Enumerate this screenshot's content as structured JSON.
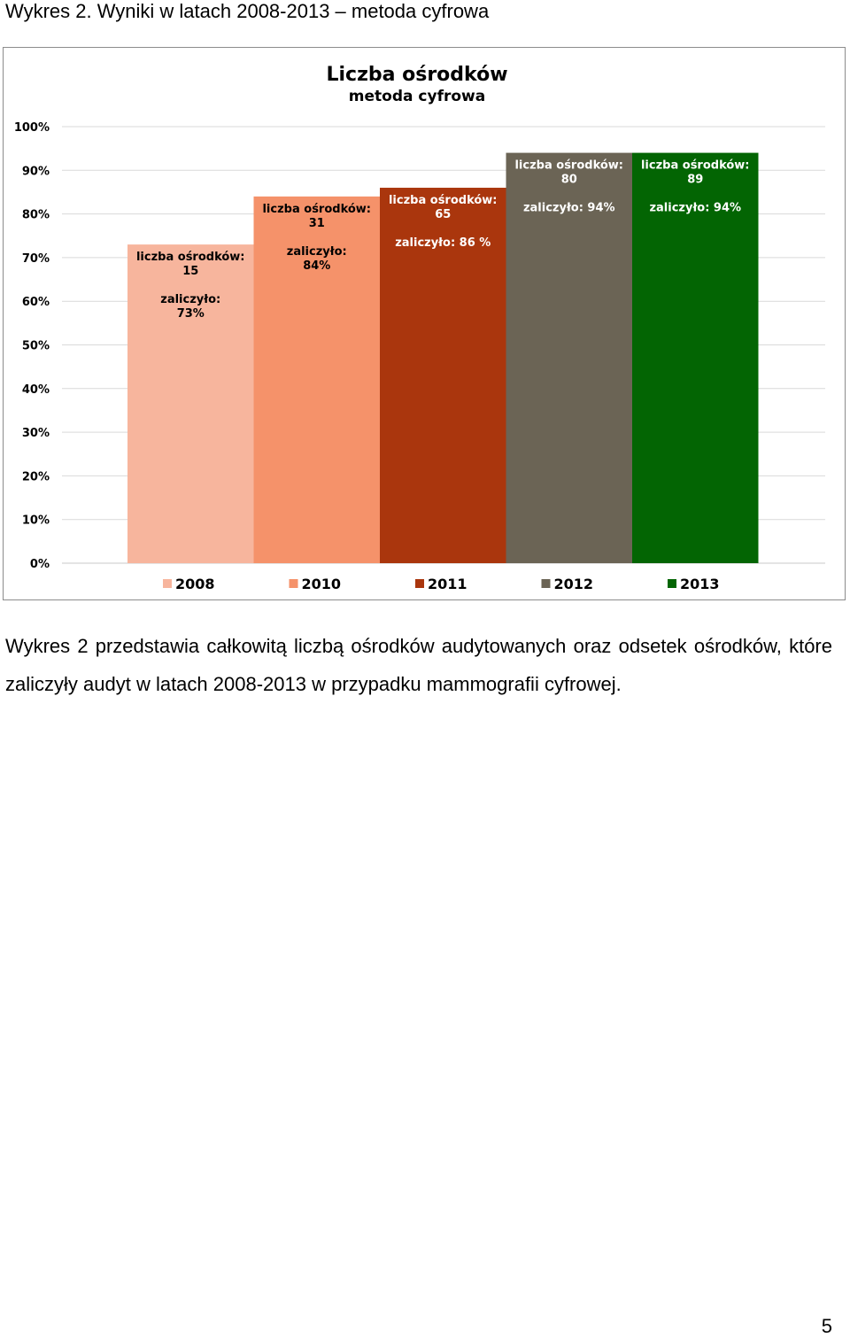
{
  "document": {
    "heading": "Wykres 2. Wyniki w latach 2008-2013 – metoda cyfrowa",
    "body_text": "Wykres 2 przedstawia całkowitą liczbą ośrodków audytowanych oraz odsetek ośrodków, które zaliczyły audyt w latach 2008-2013 w przypadku mammografii cyfrowej.",
    "page_number": "5"
  },
  "chart_data": {
    "type": "bar",
    "title": "Liczba ośrodków",
    "subtitle": "metoda cyfrowa",
    "categories": [
      "2008",
      "2010",
      "2011",
      "2012",
      "2013"
    ],
    "values": [
      73,
      84,
      86,
      94,
      94
    ],
    "value_unit": "%",
    "centers_count": [
      15,
      31,
      65,
      80,
      89
    ],
    "bar_labels": [
      {
        "count_label": "liczba ośrodków: 15",
        "count_lines": [
          "liczba ośrodków:",
          "15"
        ],
        "passed_lines": [
          "zaliczyło:",
          "73%"
        ]
      },
      {
        "count_label": "liczba ośrodków: 31",
        "count_lines": [
          "liczba ośrodków:",
          "31"
        ],
        "passed_lines": [
          "zaliczyło:",
          "84%"
        ]
      },
      {
        "count_label": "liczba ośrodków: 65",
        "count_lines": [
          "liczba ośrodków:",
          "65"
        ],
        "passed_lines": [
          "zaliczyło:  86 %"
        ]
      },
      {
        "count_label": "liczba ośrodków: 80",
        "count_lines": [
          "liczba ośrodków:",
          "80"
        ],
        "passed_lines": [
          "zaliczyło:   94%"
        ]
      },
      {
        "count_label": "liczba ośrodków: 89",
        "count_lines": [
          "liczba ośrodków:",
          "89"
        ],
        "passed_lines": [
          "zaliczyło:  94%"
        ]
      }
    ],
    "colors": [
      "#F7B59D",
      "#F5926A",
      "#AA360D",
      "#6B6455",
      "#036503"
    ],
    "label_colors": [
      "#000000",
      "#000000",
      "#FFFFFF",
      "#FFFFFF",
      "#FFFFFF"
    ],
    "ylim": [
      0,
      100
    ],
    "yticks": [
      "0%",
      "10%",
      "20%",
      "30%",
      "40%",
      "50%",
      "60%",
      "70%",
      "80%",
      "90%",
      "100%"
    ],
    "xlabel": "",
    "ylabel": "",
    "grid": true,
    "legend_position": "bottom",
    "legend": [
      "2008",
      "2010",
      "2011",
      "2012",
      "2013"
    ]
  }
}
